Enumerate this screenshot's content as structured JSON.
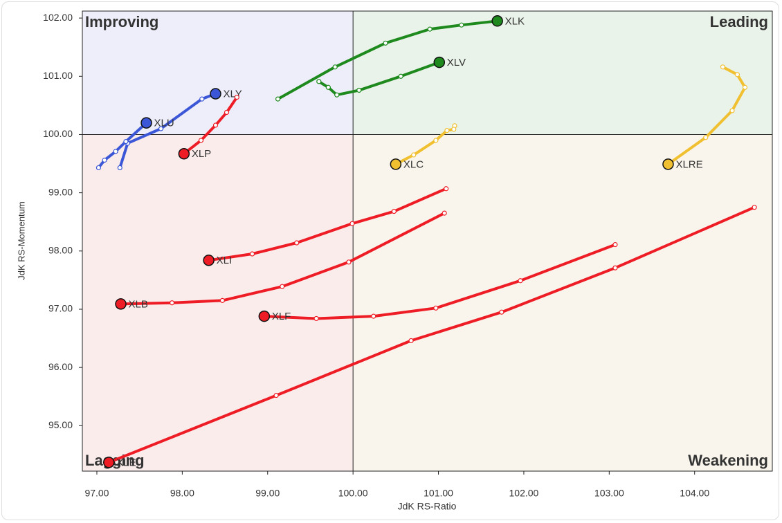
{
  "chart_data": {
    "type": "rotation",
    "xlabel": "JdK RS-Ratio",
    "ylabel": "JdK RS-Momentum",
    "xlim": [
      96.83,
      104.91
    ],
    "ylim": [
      94.22,
      102.12
    ],
    "xticks": [
      {
        "value": 97,
        "label": "97.00"
      },
      {
        "value": 98,
        "label": "98.00"
      },
      {
        "value": 99,
        "label": "99.00"
      },
      {
        "value": 100,
        "label": "100.00"
      },
      {
        "value": 101,
        "label": "101.00"
      },
      {
        "value": 102,
        "label": "102.00"
      },
      {
        "value": 103,
        "label": "103.00"
      },
      {
        "value": 104,
        "label": "104.00"
      }
    ],
    "yticks": [
      {
        "value": 95,
        "label": "95.00"
      },
      {
        "value": 96,
        "label": "96.00"
      },
      {
        "value": 97,
        "label": "97.00"
      },
      {
        "value": 98,
        "label": "98.00"
      },
      {
        "value": 99,
        "label": "99.00"
      },
      {
        "value": 100,
        "label": "100.00"
      },
      {
        "value": 101,
        "label": "101.00"
      },
      {
        "value": 102,
        "label": "102.00"
      }
    ],
    "reference_lines": {
      "x": 100,
      "y": 100
    },
    "quadrants": [
      {
        "label": "Improving",
        "color": "#6b7bea",
        "fill": "#eeeefa",
        "corner": "top-left"
      },
      {
        "label": "Leading",
        "color": "#5aa95a",
        "fill": "#e9f3e9",
        "corner": "top-right"
      },
      {
        "label": "Weakening",
        "color": "#f0c030",
        "fill": "#f9f5ec",
        "corner": "bottom-right"
      },
      {
        "label": "Lagging",
        "color": "#f08c8c",
        "fill": "#fbecec",
        "corner": "bottom-left"
      }
    ],
    "series": [
      {
        "name": "XLK",
        "color": "#1e8a1e",
        "x": [
          99.12,
          99.79,
          100.38,
          100.9,
          101.27,
          101.69
        ],
        "values": [
          100.61,
          101.16,
          101.57,
          101.81,
          101.88,
          101.95
        ]
      },
      {
        "name": "XLV",
        "color": "#1e8a1e",
        "x": [
          99.6,
          99.71,
          99.81,
          100.07,
          100.56,
          101.01
        ],
        "values": [
          100.91,
          100.81,
          100.68,
          100.76,
          101.0,
          101.24
        ]
      },
      {
        "name": "XLRE",
        "color": "#f0c030",
        "x": [
          104.33,
          104.5,
          104.59,
          104.44,
          104.13,
          103.69
        ],
        "values": [
          101.16,
          101.03,
          100.81,
          100.41,
          99.95,
          99.49
        ]
      },
      {
        "name": "XLC",
        "color": "#f0c030",
        "x": [
          101.19,
          101.18,
          101.1,
          100.97,
          100.71,
          100.5
        ],
        "values": [
          100.15,
          100.09,
          100.07,
          99.9,
          99.65,
          99.49
        ]
      },
      {
        "name": "XLY",
        "color": "#3b56d6",
        "x": [
          97.27,
          97.36,
          97.75,
          98.23,
          98.39
        ],
        "values": [
          99.43,
          99.85,
          100.1,
          100.61,
          100.7
        ]
      },
      {
        "name": "XLU",
        "color": "#3b56d6",
        "x": [
          97.02,
          97.09,
          97.22,
          97.34,
          97.58
        ],
        "values": [
          99.43,
          99.56,
          99.71,
          99.88,
          100.2
        ]
      },
      {
        "name": "XLP",
        "color": "#ee1c25",
        "x": [
          98.64,
          98.52,
          98.39,
          98.22,
          98.02
        ],
        "values": [
          100.64,
          100.38,
          100.16,
          99.9,
          99.67
        ]
      },
      {
        "name": "XLI",
        "color": "#ee1c25",
        "x": [
          101.09,
          100.48,
          99.99,
          99.34,
          98.82,
          98.31
        ],
        "values": [
          99.07,
          98.68,
          98.47,
          98.14,
          97.95,
          97.84
        ]
      },
      {
        "name": "XLB",
        "color": "#ee1c25",
        "x": [
          101.07,
          99.95,
          99.17,
          98.47,
          97.88,
          97.28
        ],
        "values": [
          98.65,
          97.81,
          97.39,
          97.15,
          97.11,
          97.09
        ]
      },
      {
        "name": "XLF",
        "color": "#ee1c25",
        "x": [
          103.07,
          101.96,
          100.97,
          100.24,
          99.57,
          98.96
        ],
        "values": [
          98.11,
          97.49,
          97.02,
          96.88,
          96.84,
          96.88
        ]
      },
      {
        "name": "XLE",
        "color": "#ee1c25",
        "x": [
          104.7,
          103.07,
          101.74,
          100.68,
          99.1,
          97.14
        ],
        "values": [
          98.75,
          97.71,
          96.95,
          96.46,
          95.52,
          94.37
        ]
      }
    ]
  }
}
